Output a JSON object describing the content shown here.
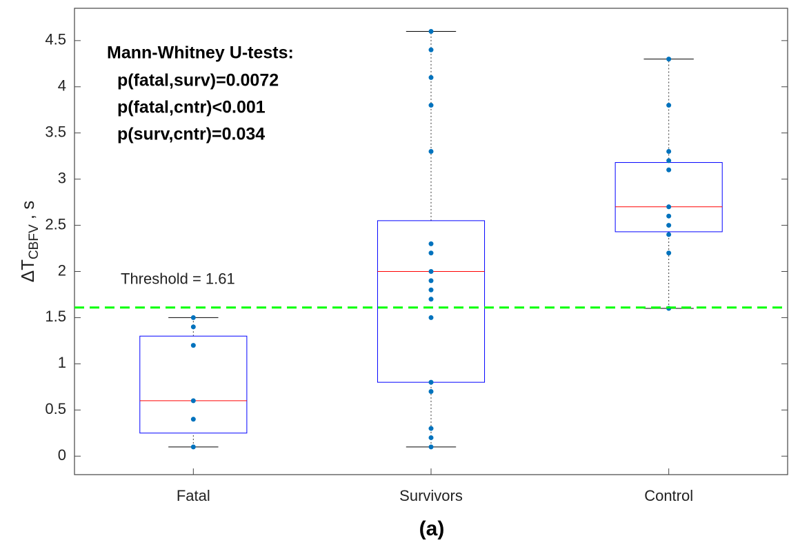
{
  "chart_data": {
    "type": "box",
    "categories": [
      "Fatal",
      "Survivors",
      "Control"
    ],
    "boxes": [
      {
        "min": 0.1,
        "q1": 0.25,
        "median": 0.6,
        "q3": 1.3,
        "max": 1.5,
        "points": [
          0.1,
          0.4,
          0.6,
          1.2,
          1.4,
          1.5
        ]
      },
      {
        "min": 0.1,
        "q1": 0.8,
        "median": 2.0,
        "q3": 2.55,
        "max": 4.6,
        "points": [
          0.1,
          0.2,
          0.3,
          0.7,
          0.8,
          1.5,
          1.7,
          1.8,
          1.9,
          2.0,
          2.2,
          2.3,
          3.3,
          3.8,
          4.1,
          4.4,
          4.6
        ]
      },
      {
        "min": 1.6,
        "q1": 2.43,
        "median": 2.7,
        "q3": 3.18,
        "max": 4.3,
        "points": [
          1.6,
          2.2,
          2.4,
          2.5,
          2.6,
          2.7,
          3.1,
          3.2,
          3.3,
          3.8,
          4.3
        ]
      }
    ],
    "box_color": "#0000ff",
    "median_color": "#ff0000",
    "point_color": "#0072bd",
    "ylim": [
      -0.2,
      4.85
    ],
    "yticks": [
      0,
      0.5,
      1,
      1.5,
      2,
      2.5,
      3,
      3.5,
      4,
      4.5
    ],
    "y_label": {
      "main": "ΔT",
      "sub": "CBFV",
      "unit": " , s"
    },
    "threshold": {
      "value": 1.61,
      "label": "Threshold = 1.61",
      "color": "#00ff00"
    },
    "annotations": [
      "Mann-Whitney U-tests:",
      "p(fatal,surv)=0.0072",
      "p(fatal,cntr)<0.001",
      "p(surv,cntr)=0.034"
    ],
    "caption": "(a)"
  }
}
